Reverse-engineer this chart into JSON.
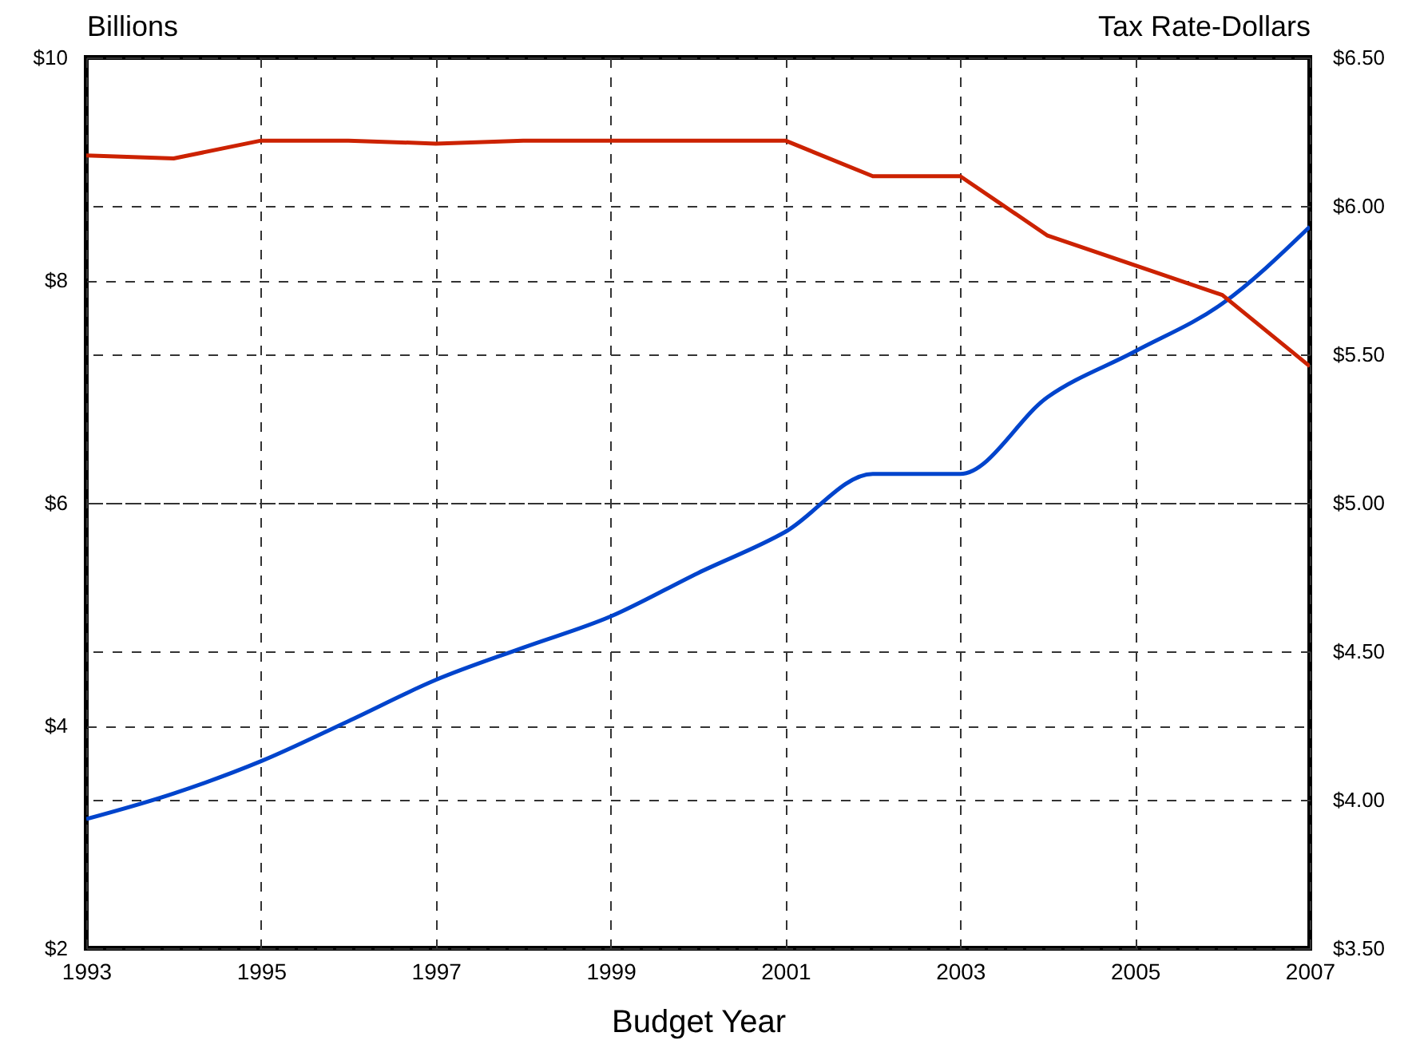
{
  "chart_data": {
    "type": "line",
    "xlabel": "Budget Year",
    "ylabel": "Billions",
    "y2label": "Tax Rate-Dollars",
    "x": [
      1993,
      1994,
      1995,
      1996,
      1997,
      1998,
      1999,
      2000,
      2001,
      2002,
      2003,
      2004,
      2005,
      2006,
      2007
    ],
    "series": [
      {
        "color": "#0044cc",
        "values": [
          3.16,
          3.39,
          3.68,
          4.04,
          4.41,
          4.7,
          4.98,
          5.37,
          5.74,
          6.26,
          6.26,
          6.95,
          7.36,
          7.79,
          8.48
        ]
      },
      {
        "color": "#cc2200",
        "axis": "y2",
        "values": [
          6.17,
          6.16,
          6.22,
          6.22,
          6.21,
          6.22,
          6.22,
          6.22,
          6.22,
          6.1,
          6.1,
          5.9,
          5.8,
          5.7,
          5.46
        ]
      }
    ],
    "xlim": [
      1993,
      2007
    ],
    "xticks": [
      1993,
      1995,
      1997,
      1999,
      2001,
      2003,
      2005,
      2007
    ],
    "ylim": [
      2,
      10
    ],
    "yticks": [
      {
        "value": 2,
        "label": "$2"
      },
      {
        "value": 4,
        "label": "$4"
      },
      {
        "value": 6,
        "label": "$6"
      },
      {
        "value": 8,
        "label": "$8"
      },
      {
        "value": 10,
        "label": "$10"
      }
    ],
    "y2lim": [
      3.5,
      6.5
    ],
    "y2ticks": [
      {
        "value": 3.5,
        "label": "$3.50"
      },
      {
        "value": 4,
        "label": "$4.00"
      },
      {
        "value": 4.5,
        "label": "$4.50"
      },
      {
        "value": 5,
        "label": "$5.00"
      },
      {
        "value": 5.5,
        "label": "$5.50"
      },
      {
        "value": 6,
        "label": "$6.00"
      },
      {
        "value": 6.5,
        "label": "$6.50"
      }
    ],
    "grid": true,
    "line_style": "solid"
  }
}
